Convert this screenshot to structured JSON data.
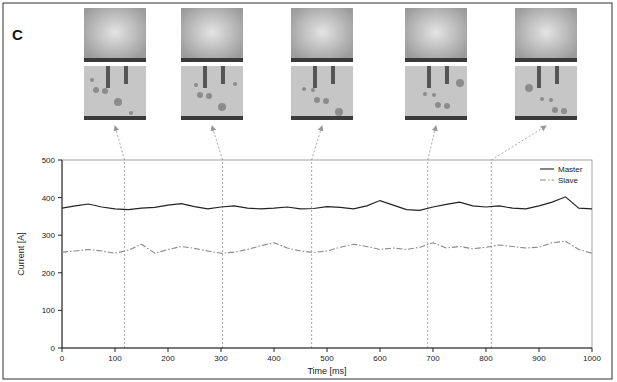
{
  "chart_data": {
    "type": "line",
    "title": "C",
    "x_label": "Time [ms]",
    "y_label": "Current [A]",
    "x": [
      0,
      25,
      50,
      75,
      100,
      125,
      150,
      175,
      200,
      225,
      250,
      275,
      300,
      325,
      350,
      375,
      400,
      425,
      450,
      475,
      500,
      525,
      550,
      575,
      600,
      625,
      650,
      675,
      700,
      725,
      750,
      775,
      800,
      825,
      850,
      875,
      900,
      925,
      950,
      975,
      1000
    ],
    "series": [
      {
        "name": "Master",
        "color": "#222222",
        "line_style": "solid",
        "values": [
          372,
          378,
          383,
          375,
          370,
          368,
          372,
          374,
          380,
          384,
          376,
          370,
          375,
          378,
          372,
          370,
          372,
          375,
          370,
          371,
          376,
          374,
          370,
          378,
          392,
          380,
          368,
          366,
          375,
          382,
          388,
          378,
          375,
          378,
          372,
          370,
          378,
          388,
          402,
          372,
          370
        ]
      },
      {
        "name": "Slave",
        "color": "#8a8a8a",
        "line_style": "dashdot",
        "values": [
          255,
          258,
          262,
          258,
          252,
          260,
          276,
          252,
          262,
          270,
          265,
          258,
          252,
          255,
          262,
          272,
          280,
          266,
          258,
          254,
          258,
          268,
          276,
          270,
          262,
          266,
          262,
          268,
          280,
          266,
          270,
          264,
          268,
          274,
          270,
          266,
          268,
          280,
          284,
          262,
          252
        ]
      }
    ],
    "frame_times": [
      118,
      303,
      471,
      690,
      810
    ],
    "xlim": [
      0,
      1000
    ],
    "ylim": [
      0,
      500
    ],
    "xticks": [
      0,
      100,
      200,
      300,
      400,
      500,
      600,
      700,
      800,
      900,
      1000
    ],
    "yticks": [
      0,
      100,
      200,
      300,
      400,
      500
    ],
    "legend": "upper right",
    "grid": false
  }
}
